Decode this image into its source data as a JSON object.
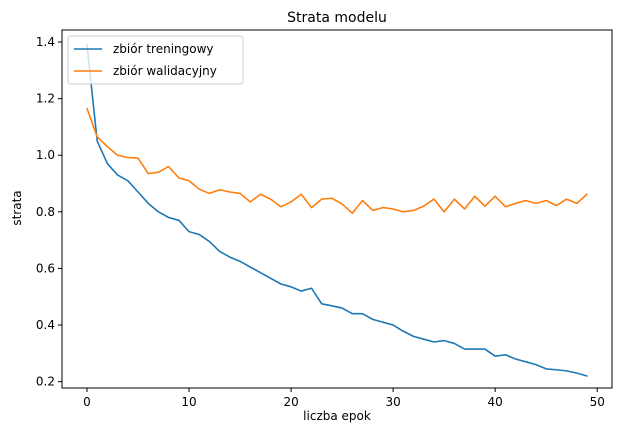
{
  "chart_data": {
    "type": "line",
    "title": "Strata modelu",
    "xlabel": "liczba epok",
    "ylabel": "strata",
    "xlim": [
      -2.45,
      51.45
    ],
    "ylim": [
      0.1775,
      1.4425
    ],
    "xticks": [
      0,
      10,
      20,
      30,
      40,
      50
    ],
    "yticks": [
      0.2,
      0.4,
      0.6,
      0.8,
      1.0,
      1.2,
      1.4
    ],
    "xtick_labels": [
      "0",
      "10",
      "20",
      "30",
      "40",
      "50"
    ],
    "ytick_labels": [
      "0.2",
      "0.4",
      "0.6",
      "0.8",
      "1.0",
      "1.2",
      "1.4"
    ],
    "grid": false,
    "legend_position": "upper left",
    "x": [
      0,
      1,
      2,
      3,
      4,
      5,
      6,
      7,
      8,
      9,
      10,
      11,
      12,
      13,
      14,
      15,
      16,
      17,
      18,
      19,
      20,
      21,
      22,
      23,
      24,
      25,
      26,
      27,
      28,
      29,
      30,
      31,
      32,
      33,
      34,
      35,
      36,
      37,
      38,
      39,
      40,
      41,
      42,
      43,
      44,
      45,
      46,
      47,
      48,
      49
    ],
    "series": [
      {
        "name": "zbiór treningowy",
        "color": "#1f77b4",
        "values": [
          1.39,
          1.05,
          0.97,
          0.93,
          0.91,
          0.87,
          0.83,
          0.8,
          0.78,
          0.77,
          0.73,
          0.72,
          0.695,
          0.66,
          0.64,
          0.625,
          0.605,
          0.585,
          0.565,
          0.545,
          0.535,
          0.52,
          0.53,
          0.475,
          0.468,
          0.46,
          0.44,
          0.44,
          0.42,
          0.41,
          0.4,
          0.378,
          0.36,
          0.35,
          0.34,
          0.345,
          0.335,
          0.315,
          0.315,
          0.315,
          0.29,
          0.295,
          0.28,
          0.27,
          0.26,
          0.245,
          0.242,
          0.238,
          0.23,
          0.22
        ]
      },
      {
        "name": "zbiór walidacyjny",
        "color": "#ff7f0e",
        "values": [
          1.165,
          1.065,
          1.03,
          1.0,
          0.992,
          0.99,
          0.935,
          0.94,
          0.96,
          0.92,
          0.91,
          0.88,
          0.865,
          0.878,
          0.87,
          0.865,
          0.835,
          0.862,
          0.845,
          0.818,
          0.835,
          0.862,
          0.815,
          0.845,
          0.848,
          0.828,
          0.795,
          0.84,
          0.805,
          0.815,
          0.81,
          0.8,
          0.805,
          0.82,
          0.845,
          0.8,
          0.845,
          0.81,
          0.855,
          0.82,
          0.855,
          0.818,
          0.83,
          0.84,
          0.83,
          0.84,
          0.822,
          0.845,
          0.83,
          0.862
        ]
      }
    ]
  }
}
